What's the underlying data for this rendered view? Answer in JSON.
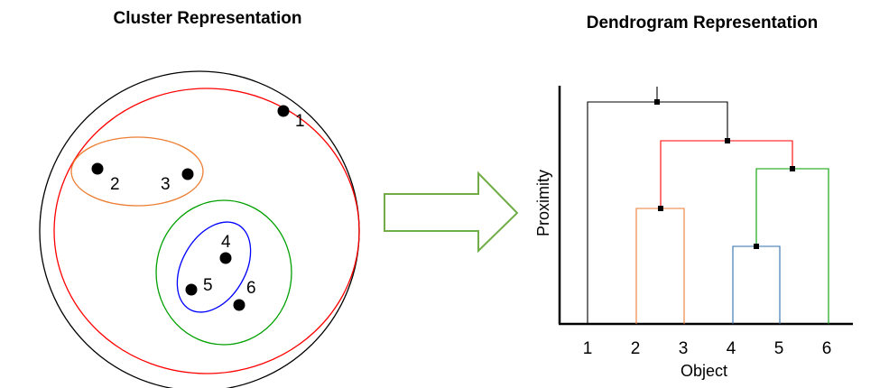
{
  "left_panel": {
    "title": "Cluster Representation",
    "points": [
      {
        "label": "1"
      },
      {
        "label": "2"
      },
      {
        "label": "3"
      },
      {
        "label": "4"
      },
      {
        "label": "5"
      },
      {
        "label": "6"
      }
    ],
    "cluster_colors": {
      "outer": "#000000",
      "all": "#ff0000",
      "pair_2_3": "#ed7d31",
      "group_4_5_6": "#00a000",
      "pair_4_5": "#0000ff"
    }
  },
  "arrow": {
    "color": "#70ad47"
  },
  "right_panel": {
    "title": "Dendrogram Representation",
    "xlabel": "Object",
    "ylabel": "Proximity",
    "x_ticks": [
      "1",
      "2",
      "3",
      "4",
      "5",
      "6"
    ],
    "link_colors": {
      "root": "#000000",
      "merge_23_456": "#ff0000",
      "merge_2_3": "#ed7d31",
      "merge_45_6": "#00a000",
      "merge_4_5": "#2e6fad"
    }
  }
}
